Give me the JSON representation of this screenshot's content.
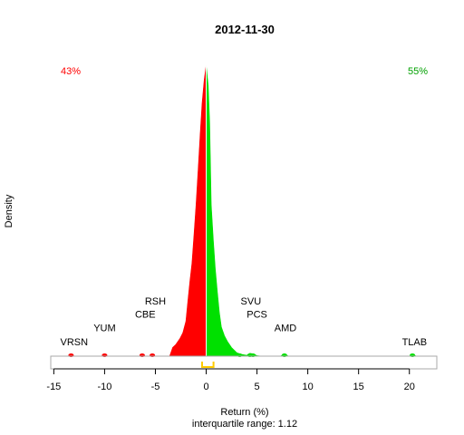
{
  "chart_data": {
    "type": "area",
    "title": "2012-11-30",
    "xlabel": "Return (%)",
    "ylabel": "Density",
    "subtitle": "interquartile range: 1.12",
    "xlim": [
      -15.3,
      22.7
    ],
    "x_ticks": [
      -15,
      -10,
      -5,
      0,
      5,
      10,
      15,
      20
    ],
    "negative_share": "43%",
    "positive_share": "55%",
    "colors": {
      "negative": "#ff0000",
      "positive": "#00e000",
      "iqr_marker": "#ffcc00",
      "frame": "#aaaaaa"
    },
    "series": [
      {
        "x": [
          -13.6,
          -13.3,
          -13.0,
          -12.5,
          -11.0,
          -10.3,
          -10.0,
          -9.7,
          -9.0,
          -6.6,
          -6.3,
          -6.0,
          -5.6,
          -5.3,
          -5.0,
          -4.6,
          -3.6,
          -3.3,
          -3.0,
          -2.6,
          -2.3,
          -2.0,
          -1.8,
          -1.6,
          -1.4,
          -1.2,
          -1.0,
          -0.8,
          -0.6,
          -0.4,
          -0.2,
          0.0,
          0.2,
          0.35,
          0.5,
          0.7,
          0.9,
          1.1,
          1.3,
          1.5,
          1.8,
          2.1,
          2.5,
          3.0,
          3.5,
          4.0,
          4.3,
          4.6,
          5.0,
          5.5,
          6.5,
          7.3,
          7.7,
          8.1,
          9.0,
          15.0,
          20.0,
          20.3,
          20.7,
          21.0,
          22.0
        ],
        "y": [
          0,
          0.003,
          0,
          0,
          0,
          0,
          0.005,
          0,
          0,
          0,
          0.006,
          0,
          0,
          0.006,
          0,
          0,
          0,
          0.03,
          0.04,
          0.06,
          0.08,
          0.12,
          0.19,
          0.26,
          0.32,
          0.42,
          0.52,
          0.64,
          0.76,
          0.87,
          0.95,
          1.0,
          0.93,
          0.8,
          0.52,
          0.4,
          0.3,
          0.22,
          0.15,
          0.1,
          0.07,
          0.05,
          0.03,
          0.012,
          0.006,
          0.003,
          0.01,
          0.008,
          0.002,
          0,
          0,
          0,
          0.008,
          0,
          0,
          0,
          0,
          0.006,
          0,
          0,
          0
        ]
      }
    ],
    "labels": [
      {
        "text": "VRSN",
        "x": -13.0,
        "y": 0.038
      },
      {
        "text": "YUM",
        "x": -10.0,
        "y": 0.085
      },
      {
        "text": "CBE",
        "x": -6.0,
        "y": 0.133
      },
      {
        "text": "RSH",
        "x": -5.0,
        "y": 0.178
      },
      {
        "text": "SVU",
        "x": 4.4,
        "y": 0.178
      },
      {
        "text": "PCS",
        "x": 5.0,
        "y": 0.133
      },
      {
        "text": "AMD",
        "x": 7.8,
        "y": 0.085
      },
      {
        "text": "TLAB",
        "x": 20.5,
        "y": 0.038
      }
    ],
    "iqr": [
      -0.4,
      0.72
    ]
  }
}
